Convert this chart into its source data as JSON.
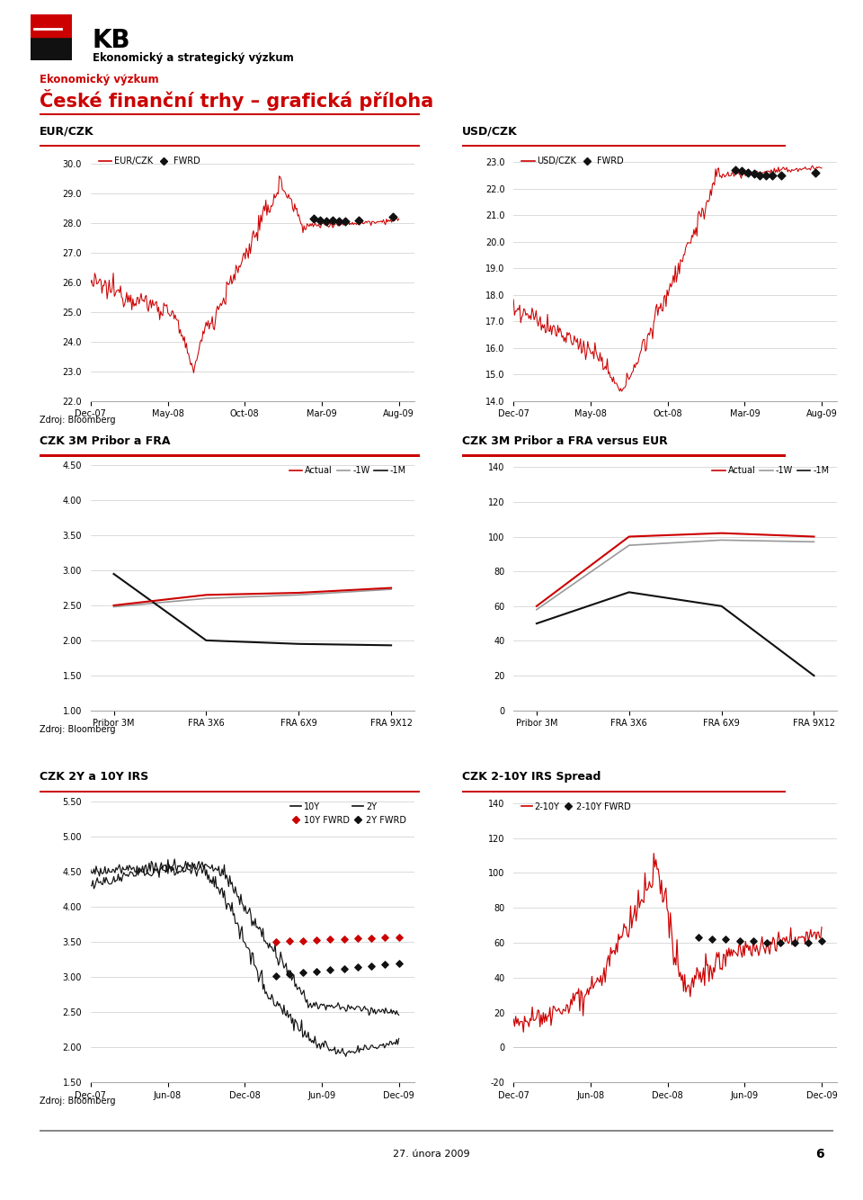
{
  "title_main": "KB",
  "subtitle1": "Ekonomický a strategický výzkum",
  "subtitle2": "Ekonomický výzkum",
  "title_big": "České finanční trhy – grafická příloha",
  "footer_date": "27. února 2009",
  "footer_page": "6",
  "eur_czk_title": "EUR/CZK",
  "eur_czk_ylim": [
    22.0,
    30.5
  ],
  "eur_czk_yticks": [
    22.0,
    23.0,
    24.0,
    25.0,
    26.0,
    27.0,
    28.0,
    29.0,
    30.0
  ],
  "eur_czk_xticks": [
    "Dec-07",
    "May-08",
    "Oct-08",
    "Mar-09",
    "Aug-09"
  ],
  "usd_czk_title": "USD/CZK",
  "usd_czk_ylim": [
    14.0,
    23.5
  ],
  "usd_czk_yticks": [
    14.0,
    15.0,
    16.0,
    17.0,
    18.0,
    19.0,
    20.0,
    21.0,
    22.0,
    23.0
  ],
  "usd_czk_xticks": [
    "Dec-07",
    "May-08",
    "Oct-08",
    "Mar-09",
    "Aug-09"
  ],
  "czk_fra_title": "CZK 3M Pribor a FRA",
  "czk_fra_ylim": [
    1.0,
    4.6
  ],
  "czk_fra_yticks": [
    1.0,
    1.5,
    2.0,
    2.5,
    3.0,
    3.5,
    4.0,
    4.5
  ],
  "czk_fra_xticks": [
    "Pribor 3M",
    "FRA 3X6",
    "FRA 6X9",
    "FRA 9X12"
  ],
  "czk_fra_actual": [
    2.5,
    2.65,
    2.68,
    2.75
  ],
  "czk_fra_1w": [
    2.48,
    2.6,
    2.65,
    2.73
  ],
  "czk_fra_1m": [
    2.95,
    2.0,
    1.95,
    1.93
  ],
  "czk_fra_eur_title": "CZK 3M Pribor a FRA versus EUR",
  "czk_fra_eur_ylim": [
    0,
    145
  ],
  "czk_fra_eur_yticks": [
    0,
    20,
    40,
    60,
    80,
    100,
    120,
    140
  ],
  "czk_fra_eur_xticks": [
    "Pribor 3M",
    "FRA 3X6",
    "FRA 6X9",
    "FRA 9X12"
  ],
  "czk_fra_eur_actual": [
    60,
    100,
    102,
    100
  ],
  "czk_fra_eur_1w": [
    58,
    95,
    98,
    97
  ],
  "czk_fra_eur_1m": [
    50,
    68,
    60,
    20
  ],
  "czk_irs_title": "CZK 2Y a 10Y IRS",
  "czk_irs_ylim": [
    1.5,
    5.6
  ],
  "czk_irs_yticks": [
    1.5,
    2.0,
    2.5,
    3.0,
    3.5,
    4.0,
    4.5,
    5.0,
    5.5
  ],
  "czk_irs_xticks": [
    "Dec-07",
    "Jun-08",
    "Dec-08",
    "Jun-09",
    "Dec-09"
  ],
  "czk_spread_title": "CZK 2-10Y IRS Spread",
  "czk_spread_ylim": [
    -20,
    145
  ],
  "czk_spread_yticks": [
    -20,
    0,
    20,
    40,
    60,
    80,
    100,
    120,
    140
  ],
  "czk_spread_xticks": [
    "Dec-07",
    "Jun-08",
    "Dec-08",
    "Jun-09",
    "Dec-09"
  ],
  "source_label": "Zdroj: Bloomberg",
  "red_color": "#cc0000",
  "black_color": "#111111",
  "gray_color": "#999999",
  "bg_color": "#ffffff",
  "grid_color": "#cccccc"
}
